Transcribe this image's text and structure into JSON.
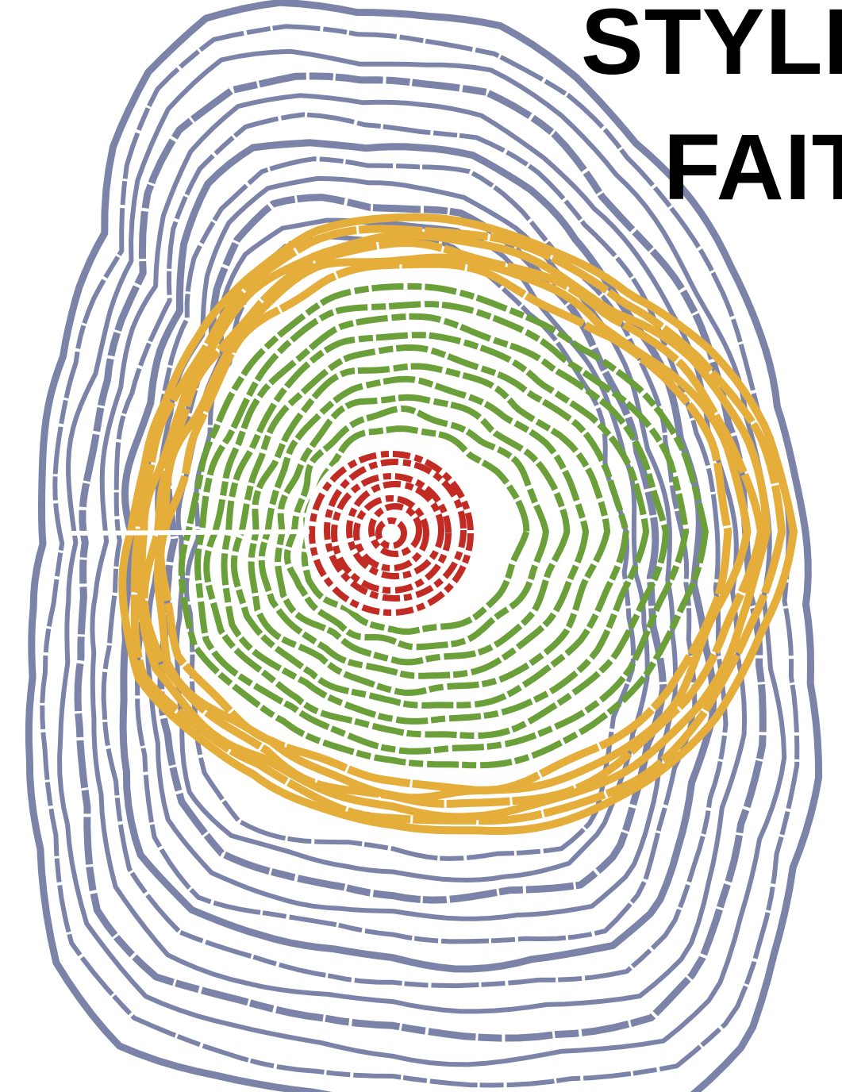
{
  "title": {
    "line1": "STYLE",
    "line2": "FAIT"
  },
  "diagram": {
    "layers": [
      {
        "id": "outer",
        "color": "#7c83a8"
      },
      {
        "id": "middle",
        "color": "#e5ad3a"
      },
      {
        "id": "inner",
        "color": "#6a9f3a"
      },
      {
        "id": "core",
        "color": "#c22a24"
      }
    ],
    "background": "#ffffff"
  }
}
